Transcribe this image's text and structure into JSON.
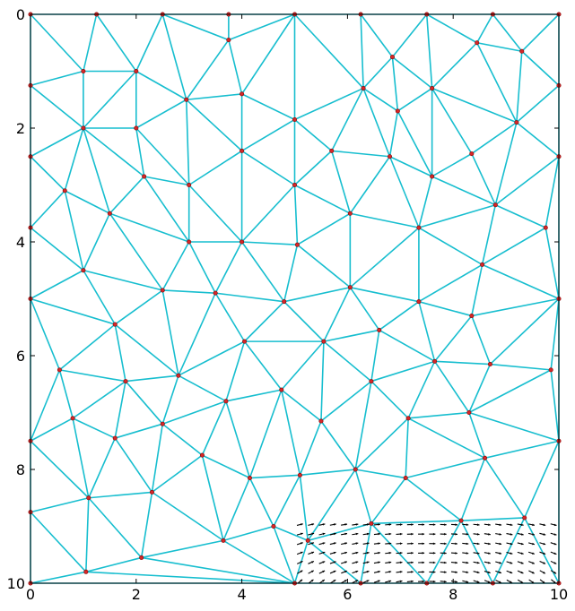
{
  "chart_data": {
    "type": "scatter",
    "title": "",
    "xlabel": "",
    "ylabel": "",
    "xlim": [
      0,
      10
    ],
    "ylim": [
      10,
      0
    ],
    "y_inverted": true,
    "x_ticks": [
      0,
      2,
      4,
      6,
      8,
      10
    ],
    "x_tick_labels": [
      "0",
      "2",
      "4",
      "6",
      "8",
      "10"
    ],
    "y_ticks": [
      0,
      2,
      4,
      6,
      8,
      10
    ],
    "y_tick_labels": [
      "0",
      "2",
      "4",
      "6",
      "8",
      "10"
    ],
    "grid": false,
    "colors": {
      "mesh_edges": "#17becf",
      "nodes": "#d62728",
      "arrows": "#000000"
    },
    "nodes": [
      [
        0,
        0
      ],
      [
        1.25,
        0
      ],
      [
        2.5,
        0
      ],
      [
        3.75,
        0
      ],
      [
        5,
        0
      ],
      [
        6.25,
        0
      ],
      [
        7.5,
        0
      ],
      [
        8.75,
        0
      ],
      [
        10,
        0
      ],
      [
        0,
        1.25
      ],
      [
        1,
        1
      ],
      [
        2,
        1
      ],
      [
        3.75,
        0.45
      ],
      [
        4,
        1.4
      ],
      [
        2.95,
        1.5
      ],
      [
        6.3,
        1.3
      ],
      [
        6.85,
        0.75
      ],
      [
        5,
        1.85
      ],
      [
        6.95,
        1.7
      ],
      [
        7.6,
        1.3
      ],
      [
        8.45,
        0.5
      ],
      [
        9.3,
        0.65
      ],
      [
        9.2,
        1.9
      ],
      [
        10,
        1.25
      ],
      [
        0,
        2.5
      ],
      [
        1,
        2
      ],
      [
        2,
        2
      ],
      [
        2.15,
        2.85
      ],
      [
        3,
        3
      ],
      [
        4,
        2.4
      ],
      [
        5,
        3
      ],
      [
        5.7,
        2.4
      ],
      [
        6.8,
        2.5
      ],
      [
        7.6,
        2.85
      ],
      [
        8.35,
        2.45
      ],
      [
        8.8,
        3.35
      ],
      [
        10,
        2.5
      ],
      [
        0,
        3.75
      ],
      [
        0.65,
        3.1
      ],
      [
        1.5,
        3.5
      ],
      [
        3,
        4
      ],
      [
        4,
        4
      ],
      [
        5.05,
        4.05
      ],
      [
        6.05,
        3.5
      ],
      [
        7.35,
        3.75
      ],
      [
        9.75,
        3.75
      ],
      [
        0,
        5
      ],
      [
        1,
        4.5
      ],
      [
        2.5,
        4.85
      ],
      [
        3.5,
        4.9
      ],
      [
        4.8,
        5.05
      ],
      [
        6.05,
        4.8
      ],
      [
        7.35,
        5.05
      ],
      [
        8.55,
        4.4
      ],
      [
        8.35,
        5.3
      ],
      [
        10,
        5
      ],
      [
        1.6,
        5.45
      ],
      [
        0.55,
        6.25
      ],
      [
        0,
        7.5
      ],
      [
        0.8,
        7.1
      ],
      [
        1.8,
        6.45
      ],
      [
        2.8,
        6.35
      ],
      [
        4.05,
        5.75
      ],
      [
        5.55,
        5.75
      ],
      [
        6.6,
        5.55
      ],
      [
        6.45,
        6.45
      ],
      [
        7.65,
        6.1
      ],
      [
        8.7,
        6.15
      ],
      [
        9.85,
        6.25
      ],
      [
        1.6,
        7.45
      ],
      [
        2.5,
        7.2
      ],
      [
        3.7,
        6.8
      ],
      [
        4.75,
        6.6
      ],
      [
        5.5,
        7.15
      ],
      [
        7.15,
        7.1
      ],
      [
        8.3,
        7
      ],
      [
        10,
        7.5
      ],
      [
        3.25,
        7.75
      ],
      [
        4.15,
        8.15
      ],
      [
        5.1,
        8.1
      ],
      [
        6.15,
        8
      ],
      [
        7.1,
        8.15
      ],
      [
        8.6,
        7.8
      ],
      [
        0,
        8.75
      ],
      [
        1.1,
        8.5
      ],
      [
        2.3,
        8.4
      ],
      [
        3.65,
        9.25
      ],
      [
        4.6,
        9
      ],
      [
        5.25,
        9.25
      ],
      [
        6.45,
        8.95
      ],
      [
        8.15,
        8.9
      ],
      [
        9.35,
        8.85
      ],
      [
        0,
        10
      ],
      [
        1.05,
        9.8
      ],
      [
        2.1,
        9.55
      ],
      [
        5,
        10
      ],
      [
        6.25,
        10
      ],
      [
        7.5,
        10
      ],
      [
        8.75,
        10
      ],
      [
        10,
        10
      ]
    ],
    "quiver_region": {
      "x": [
        5.0,
        10.0
      ],
      "y": [
        8.85,
        10.0
      ]
    }
  }
}
